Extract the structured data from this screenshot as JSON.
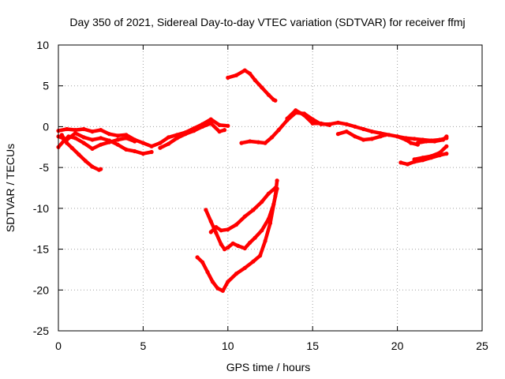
{
  "chart_data": {
    "type": "scatter",
    "title": "Day 350 of 2021, Sidereal Day-to-day VTEC variation (SDTVAR) for receiver ffmj",
    "xlabel": "GPS time / hours",
    "ylabel": "SDTVAR / TECUs",
    "xlim": [
      0,
      25
    ],
    "ylim": [
      -25,
      10
    ],
    "xticks": [
      "0",
      "5",
      "10",
      "15",
      "20",
      "25"
    ],
    "yticks": [
      "-25",
      "-20",
      "-15",
      "-10",
      "-5",
      "0",
      "5",
      "10"
    ],
    "grid": true,
    "series_color": "#ff0000",
    "series": [
      {
        "points": [
          [
            0.0,
            -0.5
          ],
          [
            0.5,
            -0.3
          ],
          [
            1.0,
            -0.4
          ],
          [
            1.5,
            -0.3
          ],
          [
            2.0,
            -0.6
          ],
          [
            2.5,
            -0.4
          ],
          [
            3.0,
            -0.9
          ],
          [
            3.5,
            -1.1
          ],
          [
            4.0,
            -1.0
          ],
          [
            4.5,
            -1.6
          ],
          [
            5.0,
            -2.0
          ],
          [
            5.5,
            -2.4
          ],
          [
            6.0,
            -2.0
          ],
          [
            6.5,
            -1.3
          ],
          [
            7.0,
            -1.0
          ],
          [
            7.5,
            -0.7
          ],
          [
            8.0,
            -0.2
          ],
          [
            8.5,
            0.3
          ],
          [
            9.0,
            0.9
          ],
          [
            9.5,
            0.2
          ],
          [
            10.0,
            0.1
          ]
        ]
      },
      {
        "points": [
          [
            0.0,
            -1.2
          ],
          [
            0.5,
            -1.6
          ],
          [
            1.0,
            -0.8
          ],
          [
            1.5,
            -1.3
          ],
          [
            2.0,
            -1.6
          ],
          [
            2.5,
            -1.4
          ],
          [
            3.0,
            -1.7
          ],
          [
            3.5,
            -2.2
          ],
          [
            4.0,
            -2.8
          ],
          [
            4.5,
            -3.0
          ],
          [
            5.0,
            -3.3
          ],
          [
            5.5,
            -3.1
          ]
        ]
      },
      {
        "points": [
          [
            0.0,
            -2.5
          ],
          [
            0.3,
            -1.8
          ],
          [
            0.6,
            -1.2
          ],
          [
            1.0,
            -1.4
          ],
          [
            1.5,
            -2.0
          ],
          [
            2.0,
            -2.7
          ],
          [
            2.5,
            -2.2
          ],
          [
            3.0,
            -1.9
          ],
          [
            3.5,
            -1.6
          ],
          [
            4.0,
            -1.4
          ],
          [
            4.5,
            -1.8
          ]
        ]
      },
      {
        "points": [
          [
            0.2,
            -1.0
          ],
          [
            0.5,
            -2.0
          ],
          [
            0.8,
            -2.6
          ],
          [
            1.2,
            -3.4
          ],
          [
            1.6,
            -4.2
          ],
          [
            2.0,
            -4.9
          ],
          [
            2.4,
            -5.3
          ],
          [
            2.5,
            -5.2
          ]
        ]
      },
      {
        "points": [
          [
            6.0,
            -2.6
          ],
          [
            6.5,
            -2.1
          ],
          [
            7.0,
            -1.4
          ],
          [
            7.5,
            -0.9
          ],
          [
            8.0,
            -0.5
          ],
          [
            8.5,
            0.0
          ],
          [
            9.0,
            0.4
          ],
          [
            9.5,
            -0.6
          ],
          [
            9.8,
            -0.4
          ]
        ]
      },
      {
        "points": [
          [
            10.0,
            6.0
          ],
          [
            10.5,
            6.3
          ],
          [
            11.0,
            6.9
          ],
          [
            11.3,
            6.5
          ],
          [
            11.6,
            5.7
          ],
          [
            12.0,
            4.8
          ],
          [
            12.4,
            3.9
          ],
          [
            12.7,
            3.3
          ],
          [
            12.8,
            3.2
          ]
        ]
      },
      {
        "points": [
          [
            10.8,
            -2.0
          ],
          [
            11.3,
            -1.8
          ],
          [
            11.8,
            -1.9
          ],
          [
            12.2,
            -2.0
          ],
          [
            12.6,
            -1.3
          ],
          [
            13.0,
            -0.4
          ],
          [
            13.5,
            0.8
          ],
          [
            14.0,
            1.7
          ],
          [
            14.5,
            1.6
          ],
          [
            15.0,
            0.9
          ],
          [
            15.5,
            0.3
          ],
          [
            16.0,
            0.3
          ],
          [
            16.5,
            0.5
          ],
          [
            17.0,
            0.3
          ],
          [
            17.5,
            0.0
          ],
          [
            18.0,
            -0.3
          ],
          [
            18.5,
            -0.6
          ],
          [
            19.0,
            -0.8
          ],
          [
            19.5,
            -1.0
          ],
          [
            20.0,
            -1.2
          ],
          [
            20.5,
            -1.4
          ],
          [
            21.0,
            -1.5
          ],
          [
            21.5,
            -1.6
          ],
          [
            22.0,
            -1.7
          ],
          [
            22.5,
            -1.6
          ],
          [
            22.9,
            -1.4
          ]
        ]
      },
      {
        "points": [
          [
            13.5,
            1.0
          ],
          [
            14.0,
            2.0
          ],
          [
            14.5,
            1.4
          ],
          [
            15.0,
            0.4
          ],
          [
            15.5,
            0.4
          ],
          [
            16.0,
            0.2
          ]
        ]
      },
      {
        "points": [
          [
            16.5,
            -0.9
          ],
          [
            17.0,
            -0.6
          ],
          [
            17.5,
            -1.2
          ],
          [
            18.0,
            -1.6
          ],
          [
            18.5,
            -1.5
          ],
          [
            19.0,
            -1.2
          ],
          [
            19.3,
            -1.0
          ]
        ]
      },
      {
        "points": [
          [
            20.0,
            -1.2
          ],
          [
            20.5,
            -1.6
          ],
          [
            20.8,
            -2.0
          ],
          [
            21.2,
            -2.2
          ]
        ]
      },
      {
        "points": [
          [
            21.2,
            -2.0
          ],
          [
            21.7,
            -1.8
          ],
          [
            22.2,
            -1.8
          ],
          [
            22.7,
            -1.6
          ],
          [
            22.9,
            -1.2
          ]
        ]
      },
      {
        "points": [
          [
            20.2,
            -4.4
          ],
          [
            20.6,
            -4.6
          ],
          [
            21.0,
            -4.3
          ],
          [
            21.5,
            -4.1
          ],
          [
            22.0,
            -3.8
          ],
          [
            22.5,
            -3.5
          ],
          [
            22.9,
            -3.3
          ]
        ]
      },
      {
        "points": [
          [
            21.0,
            -4.0
          ],
          [
            21.5,
            -3.8
          ],
          [
            22.0,
            -3.6
          ],
          [
            22.5,
            -3.2
          ],
          [
            22.9,
            -2.4
          ]
        ]
      },
      {
        "points": [
          [
            8.2,
            -16.0
          ],
          [
            8.5,
            -16.6
          ],
          [
            8.8,
            -17.8
          ],
          [
            9.1,
            -19.0
          ],
          [
            9.4,
            -19.8
          ],
          [
            9.7,
            -20.1
          ],
          [
            10.0,
            -19.0
          ],
          [
            10.5,
            -18.0
          ],
          [
            11.0,
            -17.3
          ],
          [
            11.5,
            -16.5
          ],
          [
            11.9,
            -15.8
          ],
          [
            12.2,
            -14.0
          ],
          [
            12.5,
            -11.8
          ],
          [
            12.8,
            -8.5
          ],
          [
            12.9,
            -6.6
          ]
        ]
      },
      {
        "points": [
          [
            8.7,
            -10.2
          ],
          [
            9.0,
            -11.6
          ],
          [
            9.3,
            -13.0
          ],
          [
            9.6,
            -14.4
          ],
          [
            9.8,
            -15.0
          ],
          [
            10.0,
            -14.8
          ],
          [
            10.3,
            -14.3
          ],
          [
            10.6,
            -14.6
          ],
          [
            11.0,
            -14.9
          ],
          [
            11.3,
            -14.2
          ],
          [
            11.6,
            -13.6
          ],
          [
            12.0,
            -12.7
          ],
          [
            12.4,
            -11.3
          ],
          [
            12.7,
            -9.5
          ],
          [
            12.9,
            -7.6
          ]
        ]
      },
      {
        "points": [
          [
            9.0,
            -12.9
          ],
          [
            9.3,
            -12.3
          ],
          [
            9.6,
            -12.7
          ],
          [
            10.0,
            -12.6
          ],
          [
            10.5,
            -12.0
          ],
          [
            11.0,
            -11.0
          ],
          [
            11.5,
            -10.2
          ],
          [
            12.0,
            -9.2
          ],
          [
            12.4,
            -8.2
          ],
          [
            12.8,
            -7.5
          ]
        ]
      }
    ]
  }
}
